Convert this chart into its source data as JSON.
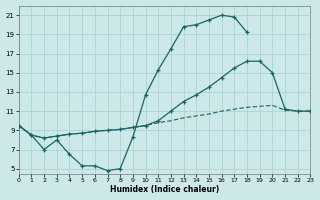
{
  "xlabel": "Humidex (Indice chaleur)",
  "bg_color": "#cce8e8",
  "grid_color": "#aad4d4",
  "line_color": "#1a6464",
  "xlim": [
    0,
    23
  ],
  "ylim": [
    4.5,
    22
  ],
  "xtick_vals": [
    0,
    1,
    2,
    3,
    4,
    5,
    6,
    7,
    8,
    9,
    10,
    11,
    12,
    13,
    14,
    15,
    16,
    17,
    18,
    19,
    20,
    21,
    22,
    23
  ],
  "ytick_vals": [
    5,
    7,
    9,
    11,
    13,
    15,
    17,
    19,
    21
  ],
  "line1_x": [
    0,
    1,
    2,
    3,
    4,
    5,
    6,
    7,
    8,
    9,
    10,
    11,
    12,
    13,
    14,
    15,
    16,
    17,
    18
  ],
  "line1_y": [
    9.5,
    8.5,
    7.0,
    8.0,
    6.5,
    5.3,
    5.3,
    4.8,
    5.0,
    8.3,
    12.7,
    15.3,
    17.5,
    19.8,
    20.0,
    20.5,
    21.0,
    20.8,
    19.2
  ],
  "line2_x": [
    0,
    1,
    2,
    3,
    4,
    5,
    6,
    7,
    8,
    9,
    10,
    11,
    12,
    13,
    14,
    15,
    16,
    17,
    18,
    19,
    20,
    21,
    22,
    23
  ],
  "line2_y": [
    9.5,
    8.5,
    8.2,
    8.4,
    8.6,
    8.7,
    8.9,
    9.0,
    9.1,
    9.3,
    9.5,
    9.8,
    10.0,
    10.3,
    10.5,
    10.7,
    11.0,
    11.2,
    11.4,
    11.5,
    11.6,
    11.1,
    11.0,
    11.0
  ],
  "line3_x": [
    0,
    1,
    2,
    3,
    4,
    5,
    6,
    7,
    8,
    9,
    10,
    11,
    12,
    13,
    14,
    15,
    16,
    17,
    18,
    19,
    20,
    21,
    22,
    23
  ],
  "line3_y": [
    9.5,
    8.5,
    8.2,
    8.4,
    8.6,
    8.7,
    8.9,
    9.0,
    9.1,
    9.3,
    9.5,
    10.0,
    11.0,
    12.0,
    12.7,
    13.5,
    14.5,
    15.5,
    16.2,
    16.2,
    15.0,
    11.2,
    11.0,
    11.0
  ]
}
